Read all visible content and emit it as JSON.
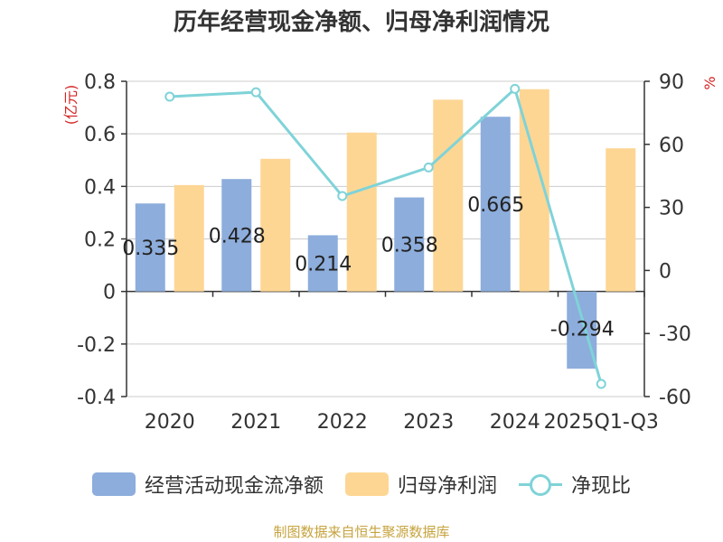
{
  "title": "历年经营现金净额、归母净利润情况",
  "source": "制图数据来自恒生聚源数据库",
  "colors": {
    "cash": "#8daddc",
    "profit": "#fdd694",
    "ratio": "#7fd3d8",
    "left_unit": "#d52424"
  },
  "chart_data": {
    "type": "bar",
    "categories": [
      "2020",
      "2021",
      "2022",
      "2023",
      "2024",
      "2025Q1-Q3"
    ],
    "left_axis": {
      "label": "(亿元)",
      "ylim": [
        -0.4,
        0.8
      ],
      "ticks": [
        "0.8",
        "0.6",
        "0.4",
        "0.2",
        "0",
        "-0.2",
        "-0.4"
      ]
    },
    "right_axis": {
      "label": "%",
      "ylim": [
        -60,
        90
      ],
      "ticks": [
        "90",
        "60",
        "30",
        "0",
        "-30",
        "-60"
      ]
    },
    "series": [
      {
        "name": "经营活动现金流净额",
        "type": "bar",
        "axis": "left",
        "values": [
          0.335,
          0.428,
          0.214,
          0.358,
          0.665,
          -0.294
        ],
        "labels": [
          "0.335",
          "0.428",
          "0.214",
          "0.358",
          "0.665",
          "-0.294"
        ]
      },
      {
        "name": "归母净利润",
        "type": "bar",
        "axis": "left",
        "values": [
          0.405,
          0.505,
          0.605,
          0.73,
          0.77,
          0.545
        ]
      },
      {
        "name": "净现比",
        "type": "line",
        "axis": "right",
        "values": [
          82.7,
          84.8,
          35.4,
          49.0,
          86.4,
          -54.0
        ]
      }
    ],
    "grid": true,
    "legend_position": "bottom"
  },
  "legend": [
    {
      "label": "经营活动现金流净额",
      "kind": "bar",
      "color_key": "cash"
    },
    {
      "label": "归母净利润",
      "kind": "bar",
      "color_key": "profit"
    },
    {
      "label": "净现比",
      "kind": "line",
      "color_key": "ratio"
    }
  ]
}
